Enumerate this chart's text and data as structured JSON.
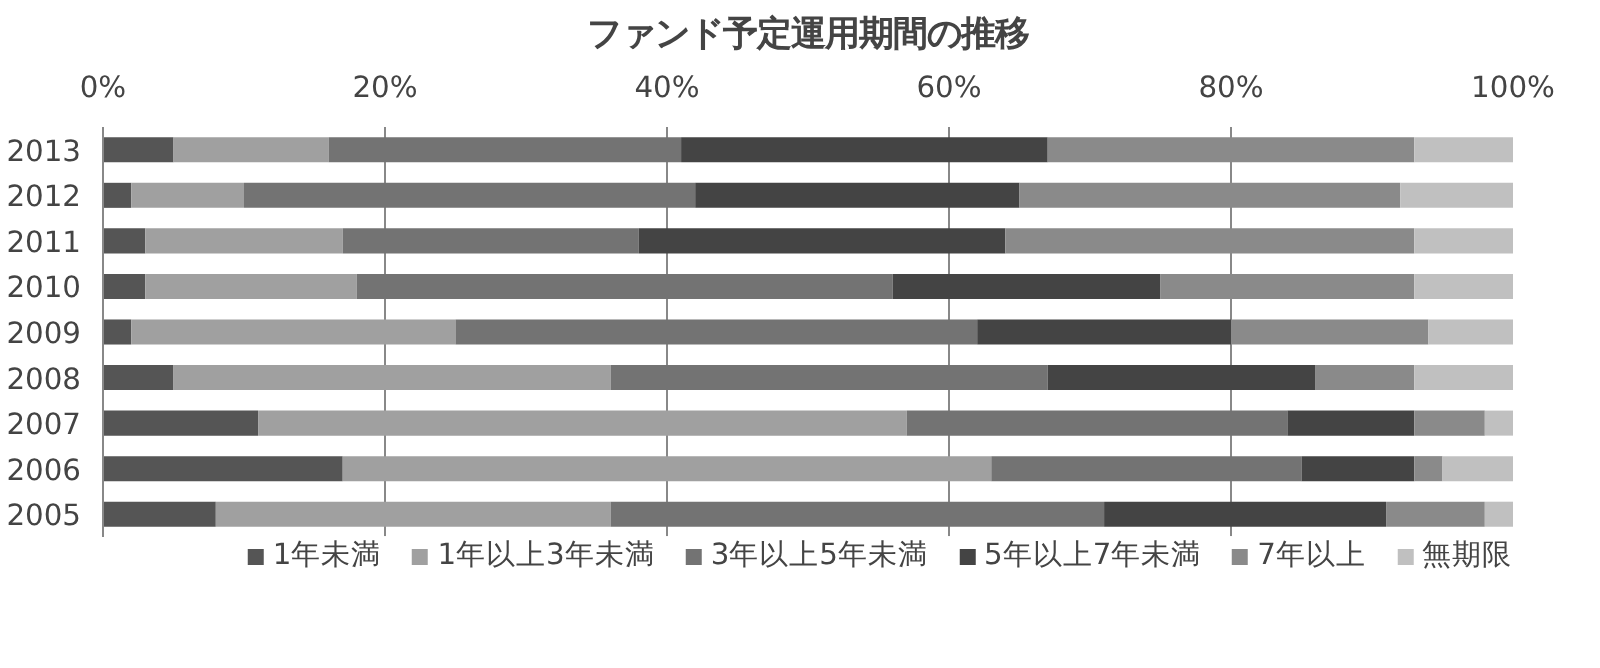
{
  "chart_data": {
    "type": "bar",
    "orientation": "horizontal",
    "stacked": true,
    "title": "ファンド予定運用期間の推移",
    "categories": [
      "2013",
      "2012",
      "2011",
      "2010",
      "2009",
      "2008",
      "2007",
      "2006",
      "2005"
    ],
    "series": [
      {
        "name": "1年未満",
        "color": "#555555",
        "values": [
          5,
          2,
          3,
          3,
          2,
          5,
          11,
          17,
          8
        ]
      },
      {
        "name": "1年以上3年未満",
        "color": "#a0a0a0",
        "values": [
          11,
          8,
          14,
          15,
          23,
          31,
          46,
          46,
          28
        ]
      },
      {
        "name": "3年以上5年未満",
        "color": "#737373",
        "values": [
          25,
          32,
          21,
          38,
          37,
          31,
          27,
          22,
          35
        ]
      },
      {
        "name": "5年以上7年未満",
        "color": "#444444",
        "values": [
          26,
          23,
          26,
          19,
          18,
          19,
          9,
          8,
          20
        ]
      },
      {
        "name": "7年以上",
        "color": "#8a8a8a",
        "values": [
          26,
          27,
          29,
          18,
          14,
          7,
          5,
          2,
          7
        ]
      },
      {
        "name": "無期限",
        "color": "#c0c0c0",
        "values": [
          7,
          8,
          7,
          7,
          6,
          7,
          2,
          5,
          2
        ]
      }
    ],
    "xlim": [
      0,
      100
    ],
    "xticks": [
      {
        "value": 0,
        "label": "0%"
      },
      {
        "value": 20,
        "label": "20%"
      },
      {
        "value": 40,
        "label": "40%"
      },
      {
        "value": 60,
        "label": "60%"
      },
      {
        "value": 80,
        "label": "80%"
      },
      {
        "value": 100,
        "label": "100%"
      }
    ],
    "grid": "x",
    "legend": "bottom"
  }
}
